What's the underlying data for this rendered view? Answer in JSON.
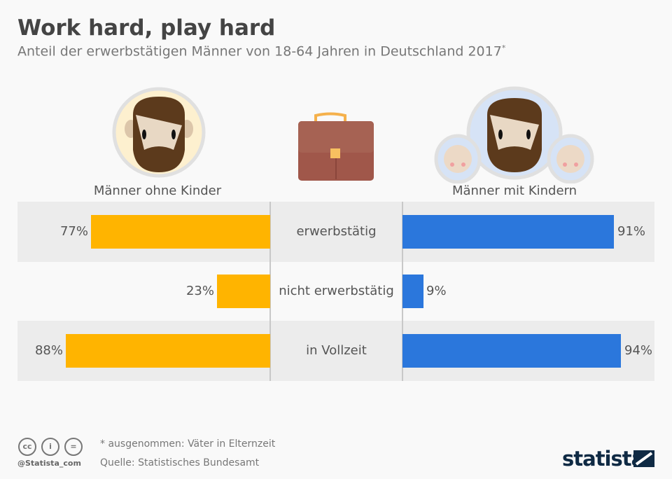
{
  "title": "Work hard, play hard",
  "subtitle": "Anteil der erwerbstätigen Männer von 18-64 Jahren in Deutschland 2017",
  "subtitle_mark": "*",
  "chart_data": {
    "type": "bar",
    "title": "Work hard, play hard",
    "categories": [
      "erwerbstätig",
      "nicht erwerbstätig",
      "in Vollzeit"
    ],
    "series": [
      {
        "name": "Männer ohne Kinder",
        "values": [
          77,
          23,
          88
        ],
        "color": "#ffb400"
      },
      {
        "name": "Männer mit Kindern",
        "values": [
          91,
          9,
          94
        ],
        "color": "#2b77dc"
      }
    ],
    "unit": "%",
    "xlim": [
      0,
      100
    ]
  },
  "labels": {
    "v": [
      "77%",
      "23%",
      "88%",
      "91%",
      "9%",
      "94%"
    ]
  },
  "footer": {
    "note": "* ausgenommen: Väter in Elternzeit",
    "source": "Quelle: Statistisches Bundesamt",
    "handle": "@Statista_com",
    "brand": "statista",
    "cc": [
      "cc",
      "i",
      "="
    ]
  }
}
